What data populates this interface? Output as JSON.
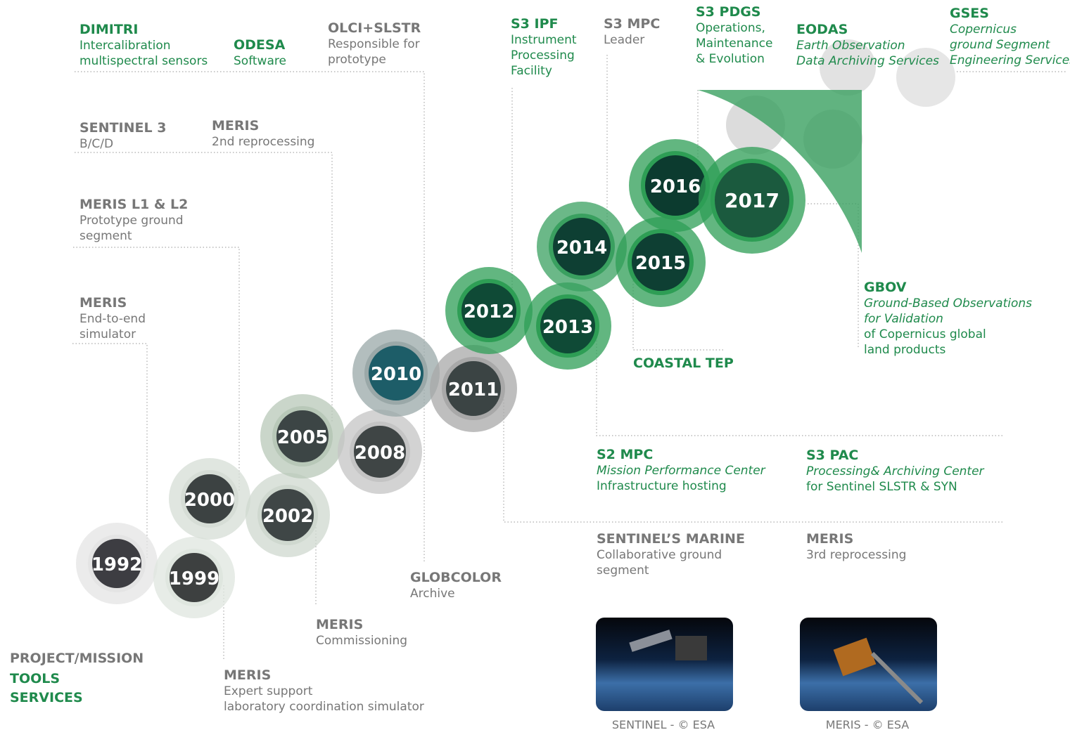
{
  "years": [
    "1992",
    "1999",
    "2000",
    "2002",
    "2005",
    "2008",
    "2010",
    "2011",
    "2012",
    "2013",
    "2014",
    "2015",
    "2016",
    "2017"
  ],
  "annotations": [
    {
      "title": "DIMITRI",
      "lines": [
        "Intercalibration",
        "multispectral sensors"
      ]
    },
    {
      "title": "ODESA",
      "lines": [
        "Software"
      ]
    },
    {
      "title": "OLCI+SLSTR",
      "lines": [
        "Responsible for",
        "prototype"
      ]
    },
    {
      "title": "S3 IPF",
      "lines": [
        "Instrument",
        "Processing",
        "Facility"
      ]
    },
    {
      "title": "S3 MPC",
      "lines": [
        "Leader"
      ]
    },
    {
      "title": "S3 PDGS",
      "lines": [
        "Operations,",
        "Maintenance",
        "& Evolution"
      ]
    },
    {
      "title": "EODAS",
      "lines": [
        "Earth Observation",
        "Data Archiving Services"
      ]
    },
    {
      "title": "GSES",
      "lines": [
        "Copernicus",
        "ground Segment",
        "Engineering Services"
      ]
    },
    {
      "title": "SENTINEL 3",
      "lines": [
        "B/C/D"
      ]
    },
    {
      "title": "MERIS",
      "lines": [
        "2nd reprocessing"
      ]
    },
    {
      "title": "MERIS L1 & L2",
      "lines": [
        "Prototype ground",
        "segment"
      ]
    },
    {
      "title": "MERIS",
      "lines": [
        "End-to-end",
        "simulator"
      ]
    },
    {
      "title": "GBOV",
      "lines": [
        "Ground-Based Observations",
        "for Validation",
        "of Copernicus global",
        "land products"
      ]
    },
    {
      "title": "COASTAL TEP",
      "lines": []
    },
    {
      "title": "S2 MPC",
      "lines": [
        "Mission Performance Center",
        "Infrastructure hosting"
      ]
    },
    {
      "title": "S3 PAC",
      "lines": [
        "Processing& Archiving Center",
        "for Sentinel SLSTR & SYN"
      ]
    },
    {
      "title": "SENTINEL’S MARINE",
      "lines": [
        "Collaborative ground",
        "segment"
      ]
    },
    {
      "title": "MERIS",
      "lines": [
        "3rd reprocessing"
      ]
    },
    {
      "title": "GLOBCOLOR",
      "lines": [
        "Archive"
      ]
    },
    {
      "title": "MERIS",
      "lines": [
        "Commissioning"
      ]
    },
    {
      "title": "MERIS",
      "lines": [
        "Expert support",
        "laboratory coordination simulator"
      ]
    }
  ],
  "legend": [
    "PROJECT/MISSION",
    "TOOLS",
    "SERVICES"
  ],
  "photos": [
    "SENTINEL - © ESA",
    "MERIS - © ESA"
  ]
}
